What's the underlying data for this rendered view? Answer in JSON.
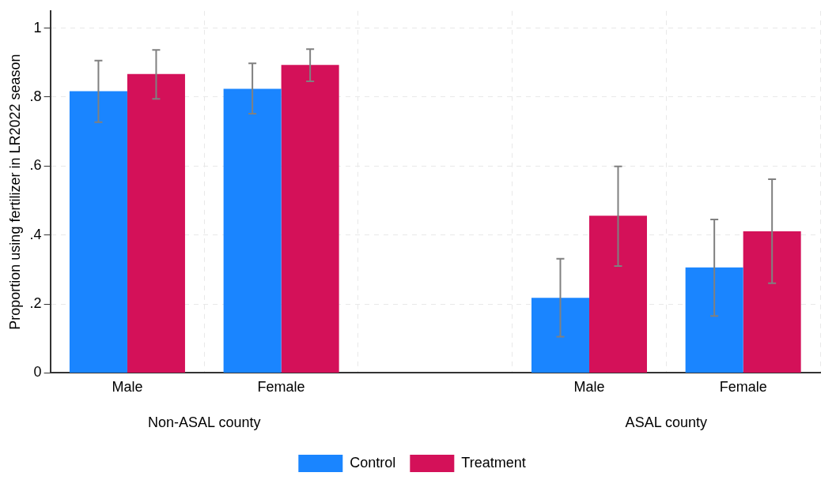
{
  "chart_data": {
    "type": "bar",
    "ylabel": "Proportion using fertilizer in LR2022 season",
    "categories": [
      "Male",
      "Female",
      null,
      "Male",
      "Female"
    ],
    "series": [
      {
        "name": "Control",
        "color": "#1a85ff",
        "values": [
          0.817,
          0.824,
          null,
          0.218,
          0.306
        ],
        "errors": [
          [
            0.727,
            0.906
          ],
          [
            0.752,
            0.898
          ],
          null,
          [
            0.105,
            0.331
          ],
          [
            0.165,
            0.445
          ]
        ]
      },
      {
        "name": "Treatment",
        "color": "#d41159",
        "values": [
          0.867,
          0.893,
          null,
          0.456,
          0.411
        ],
        "errors": [
          [
            0.795,
            0.937
          ],
          [
            0.846,
            0.939
          ],
          null,
          [
            0.31,
            0.599
          ],
          [
            0.26,
            0.562
          ]
        ]
      }
    ],
    "annotations": [
      "Non-ASAL county",
      "ASAL county"
    ],
    "ylim": [
      0,
      1.05
    ],
    "yticks": [
      0,
      {
        "value": 0.2,
        "label": ".2"
      },
      {
        "value": 0.4,
        "label": ".4"
      },
      {
        "value": 0.6,
        "label": ".6"
      },
      {
        "value": 0.8,
        "label": ".8"
      },
      1
    ],
    "grid": true,
    "legend": "bottom"
  }
}
